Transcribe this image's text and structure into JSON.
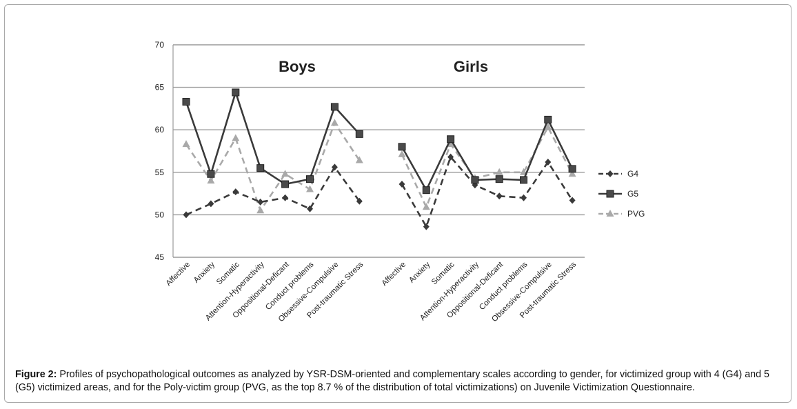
{
  "chart_data": {
    "type": "line",
    "panels": [
      "Boys",
      "Girls"
    ],
    "categories": [
      "Affective",
      "Anxiety",
      "Somatic",
      "Attention-Hyperactivity",
      "Oppositional-Deficant",
      "Conduct problems",
      "Obsessive-Compulsive",
      "Post-traumatic Stress",
      "Affective",
      "Anxiety",
      "Somatic",
      "Attention-Hyperactivity",
      "Oppositional-Deficant",
      "Conduct problems",
      "Obsessive-Compulsive",
      "Post-traumatic Stress"
    ],
    "series": [
      {
        "name": "G4",
        "color": "#3a3a3a",
        "marker": "diamond",
        "dash": true,
        "values": [
          50.0,
          51.3,
          52.7,
          51.5,
          52.0,
          50.7,
          55.6,
          51.6,
          53.6,
          48.6,
          56.8,
          53.5,
          52.2,
          52.0,
          56.2,
          51.7
        ]
      },
      {
        "name": "G5",
        "color": "#3a3a3a",
        "marker": "square",
        "dash": false,
        "values": [
          63.3,
          54.8,
          64.4,
          55.5,
          53.6,
          54.2,
          62.7,
          59.5,
          58.0,
          52.9,
          58.9,
          54.1,
          54.2,
          54.1,
          61.2,
          55.4
        ]
      },
      {
        "name": "PVG",
        "color": "#a9a9a9",
        "marker": "triangle",
        "dash": true,
        "values": [
          58.3,
          54.0,
          59.0,
          50.5,
          54.8,
          53.0,
          60.8,
          56.4,
          57.1,
          50.9,
          58.3,
          54.3,
          55.0,
          55.0,
          60.3,
          54.8
        ]
      }
    ],
    "yticks": [
      "45",
      "50",
      "55",
      "60",
      "65",
      "70"
    ],
    "ylim": [
      45,
      70
    ],
    "grid": true,
    "legend": "right"
  },
  "caption": {
    "label": "Figure 2:",
    "text": " Profiles of psychopathological outcomes as analyzed by YSR-DSM-oriented and complementary scales according to gender, for victimized group with 4 (G4) and 5 (G5) victimized areas, and for the Poly-victim group (PVG, as the top 8.7 % of the distribution of total victimizations) on Juvenile Victimization Questionnaire."
  }
}
